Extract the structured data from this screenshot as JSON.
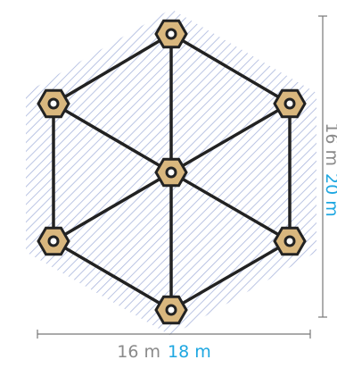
{
  "dimensions": {
    "width_old": "16 m",
    "width_new": "18 m",
    "height_old": "16 m",
    "height_new": "20 m"
  }
}
